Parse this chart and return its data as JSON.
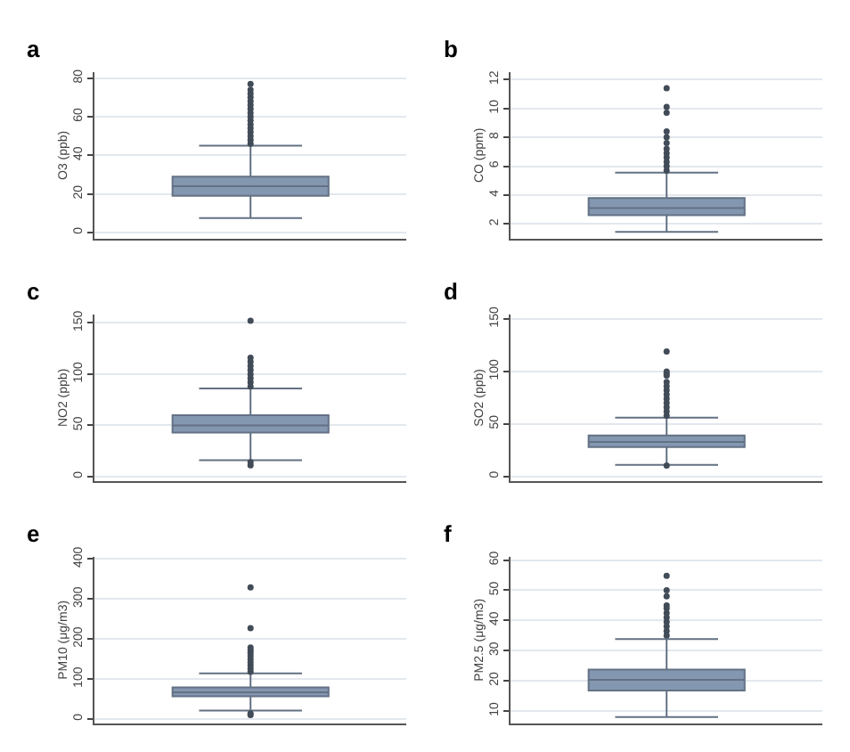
{
  "chart_data": [
    {
      "type": "box",
      "title": "a",
      "ylabel": "O3 (ppb)",
      "categories": [
        null
      ],
      "ylim": [
        -3,
        83
      ],
      "yticks": [
        0,
        20,
        40,
        60,
        80
      ],
      "grid": "y",
      "color": "#8497b0",
      "boxes": [
        {
          "low": 7.5,
          "q1": 19,
          "median": 24,
          "q3": 29,
          "high": 45,
          "outliers": [
            46,
            48,
            50,
            52,
            54,
            56,
            58,
            60,
            62,
            64,
            66,
            68,
            70,
            72,
            74,
            77
          ]
        }
      ]
    },
    {
      "type": "box",
      "title": "b",
      "ylabel": "CO (ppm)",
      "categories": [
        null
      ],
      "ylim": [
        1,
        12.5
      ],
      "yticks": [
        2,
        4,
        6,
        8,
        10,
        12
      ],
      "grid": "y",
      "color": "#8497b0",
      "boxes": [
        {
          "low": 1.45,
          "q1": 2.6,
          "median": 3.1,
          "q3": 3.8,
          "high": 5.55,
          "outliers": [
            5.7,
            6.0,
            6.3,
            6.6,
            6.9,
            7.2,
            7.6,
            8.0,
            8.4,
            9.7,
            10.1,
            11.4
          ]
        }
      ]
    },
    {
      "type": "box",
      "title": "c",
      "ylabel": "NO2 (ppb)",
      "categories": [
        null
      ],
      "ylim": [
        -4,
        158
      ],
      "yticks": [
        0,
        50,
        100,
        150
      ],
      "grid": "y",
      "color": "#8497b0",
      "boxes": [
        {
          "low": 16,
          "q1": 43,
          "median": 50,
          "q3": 60,
          "high": 86,
          "outliers": [
            11,
            14,
            88,
            92,
            96,
            100,
            104,
            108,
            112,
            116,
            152
          ]
        }
      ]
    },
    {
      "type": "box",
      "title": "d",
      "ylabel": "SO2 (ppb)",
      "categories": [
        null
      ],
      "ylim": [
        -4,
        154
      ],
      "yticks": [
        0,
        50,
        100,
        150
      ],
      "grid": "y",
      "color": "#8497b0",
      "boxes": [
        {
          "low": 11,
          "q1": 28,
          "median": 33,
          "q3": 39,
          "high": 56,
          "outliers": [
            10.5,
            58,
            62,
            66,
            70,
            74,
            78,
            82,
            86,
            90,
            96,
            98,
            100,
            119
          ]
        }
      ]
    },
    {
      "type": "box",
      "title": "e",
      "ylabel": "PM10 (μg/m3)",
      "categories": [
        null
      ],
      "ylim": [
        -10,
        405
      ],
      "yticks": [
        0,
        100,
        200,
        300,
        400
      ],
      "grid": "y",
      "color": "#8497b0",
      "boxes": [
        {
          "low": 21,
          "q1": 57,
          "median": 67,
          "q3": 79,
          "high": 114,
          "outliers": [
            10,
            14,
            118,
            126,
            134,
            142,
            150,
            158,
            166,
            172,
            179,
            227,
            329
          ]
        }
      ]
    },
    {
      "type": "box",
      "title": "f",
      "ylabel": "PM2.5 (μg/m3)",
      "categories": [
        null
      ],
      "ylim": [
        6,
        61
      ],
      "yticks": [
        10,
        20,
        30,
        40,
        50,
        60
      ],
      "grid": "y",
      "color": "#8497b0",
      "boxes": [
        {
          "low": 8,
          "q1": 16.8,
          "median": 20.3,
          "q3": 23.7,
          "high": 33.8,
          "outliers": [
            35,
            36.5,
            38,
            39.5,
            41,
            42.5,
            44,
            45,
            48,
            50,
            54.8
          ]
        }
      ]
    }
  ]
}
